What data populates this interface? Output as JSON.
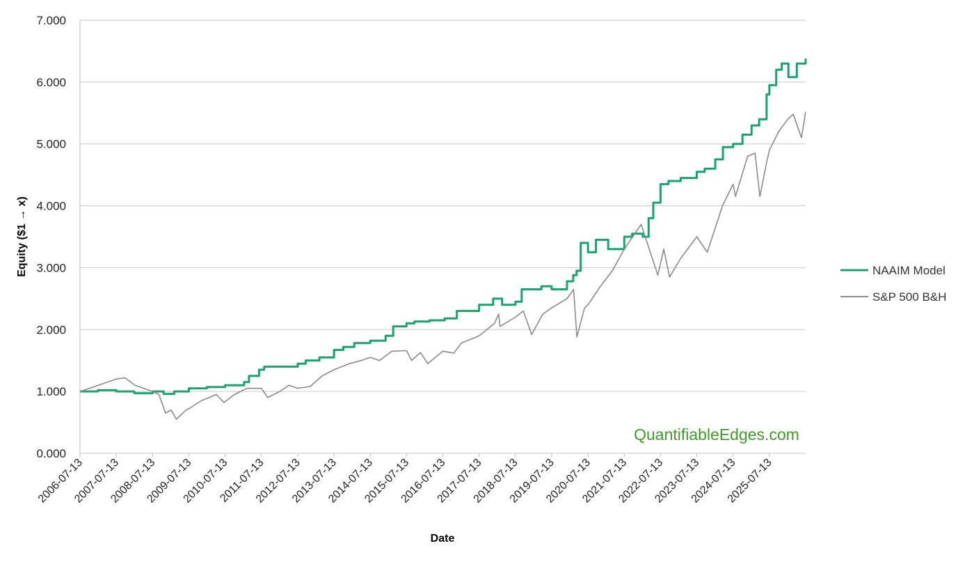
{
  "chart_data": {
    "type": "line",
    "xlabel": "Date",
    "ylabel": "Equity ($1 → x)",
    "ylim": [
      0,
      7
    ],
    "xlim": [
      "2006-07-13",
      "2026-07-13"
    ],
    "x_ticks": [
      "2006-07-13",
      "2007-07-13",
      "2008-07-13",
      "2009-07-13",
      "2010-07-13",
      "2011-07-13",
      "2012-07-13",
      "2013-07-13",
      "2014-07-13",
      "2015-07-13",
      "2016-07-13",
      "2017-07-13",
      "2018-07-13",
      "2019-07-13",
      "2020-07-13",
      "2021-07-13",
      "2022-07-13",
      "2023-07-13",
      "2024-07-13",
      "2025-07-13"
    ],
    "y_ticks": [
      "0.000",
      "1.000",
      "2.000",
      "3.000",
      "4.000",
      "5.000",
      "6.000",
      "7.000"
    ],
    "y_tick_values": [
      0,
      1,
      2,
      3,
      4,
      5,
      6,
      7
    ],
    "grid": true,
    "legend_position": "right",
    "watermark": "QuantifiableEdges.com",
    "series": [
      {
        "name": "NAAIM Model",
        "color": "#1aa170",
        "step": true,
        "points": [
          [
            "2006-07-13",
            1.0
          ],
          [
            "2007-01-10",
            1.02
          ],
          [
            "2007-07-13",
            1.0
          ],
          [
            "2008-01-10",
            0.97
          ],
          [
            "2008-07-13",
            1.0
          ],
          [
            "2008-11-01",
            0.96
          ],
          [
            "2009-02-15",
            1.0
          ],
          [
            "2009-07-13",
            1.05
          ],
          [
            "2010-01-10",
            1.07
          ],
          [
            "2010-07-13",
            1.1
          ],
          [
            "2011-01-20",
            1.15
          ],
          [
            "2011-03-10",
            1.25
          ],
          [
            "2011-06-20",
            1.35
          ],
          [
            "2011-08-10",
            1.4
          ],
          [
            "2012-07-13",
            1.45
          ],
          [
            "2012-10-01",
            1.5
          ],
          [
            "2013-02-15",
            1.55
          ],
          [
            "2013-07-13",
            1.67
          ],
          [
            "2013-10-15",
            1.72
          ],
          [
            "2014-02-01",
            1.78
          ],
          [
            "2014-07-13",
            1.82
          ],
          [
            "2014-12-15",
            1.9
          ],
          [
            "2015-03-01",
            2.05
          ],
          [
            "2015-07-13",
            2.1
          ],
          [
            "2015-10-01",
            2.13
          ],
          [
            "2016-03-01",
            2.15
          ],
          [
            "2016-08-01",
            2.18
          ],
          [
            "2016-12-01",
            2.3
          ],
          [
            "2017-07-13",
            2.4
          ],
          [
            "2017-12-01",
            2.5
          ],
          [
            "2018-03-01",
            2.4
          ],
          [
            "2018-07-13",
            2.45
          ],
          [
            "2018-09-15",
            2.65
          ],
          [
            "2019-01-15",
            2.65
          ],
          [
            "2019-04-01",
            2.7
          ],
          [
            "2019-07-13",
            2.65
          ],
          [
            "2019-12-15",
            2.78
          ],
          [
            "2020-02-15",
            2.88
          ],
          [
            "2020-03-20",
            2.95
          ],
          [
            "2020-05-01",
            3.4
          ],
          [
            "2020-07-13",
            3.25
          ],
          [
            "2020-10-01",
            3.45
          ],
          [
            "2021-02-01",
            3.3
          ],
          [
            "2021-07-13",
            3.5
          ],
          [
            "2021-10-01",
            3.55
          ],
          [
            "2022-01-15",
            3.5
          ],
          [
            "2022-03-15",
            3.8
          ],
          [
            "2022-05-01",
            4.05
          ],
          [
            "2022-07-13",
            4.35
          ],
          [
            "2022-10-01",
            4.4
          ],
          [
            "2023-02-01",
            4.45
          ],
          [
            "2023-07-13",
            4.55
          ],
          [
            "2023-10-01",
            4.6
          ],
          [
            "2024-01-15",
            4.75
          ],
          [
            "2024-04-01",
            4.95
          ],
          [
            "2024-07-13",
            5.0
          ],
          [
            "2024-10-15",
            5.15
          ],
          [
            "2025-01-15",
            5.3
          ],
          [
            "2025-04-01",
            5.4
          ],
          [
            "2025-06-15",
            5.8
          ],
          [
            "2025-07-13",
            5.95
          ],
          [
            "2025-09-20",
            6.2
          ],
          [
            "2025-11-15",
            6.3
          ],
          [
            "2026-01-20",
            6.08
          ],
          [
            "2026-04-15",
            6.3
          ],
          [
            "2026-07-13",
            6.38
          ]
        ]
      },
      {
        "name": "S&P 500 B&H",
        "color": "#8a8a8a",
        "step": false,
        "points": [
          [
            "2006-07-13",
            1.0
          ],
          [
            "2006-10-15",
            1.05
          ],
          [
            "2007-01-15",
            1.1
          ],
          [
            "2007-04-15",
            1.15
          ],
          [
            "2007-07-13",
            1.2
          ],
          [
            "2007-10-10",
            1.22
          ],
          [
            "2008-01-15",
            1.1
          ],
          [
            "2008-04-15",
            1.05
          ],
          [
            "2008-07-13",
            1.0
          ],
          [
            "2008-09-15",
            0.95
          ],
          [
            "2008-11-20",
            0.65
          ],
          [
            "2009-01-15",
            0.7
          ],
          [
            "2009-03-09",
            0.55
          ],
          [
            "2009-06-15",
            0.7
          ],
          [
            "2009-07-13",
            0.72
          ],
          [
            "2009-11-15",
            0.85
          ],
          [
            "2010-04-15",
            0.95
          ],
          [
            "2010-07-01",
            0.82
          ],
          [
            "2010-10-15",
            0.95
          ],
          [
            "2011-02-15",
            1.05
          ],
          [
            "2011-07-13",
            1.05
          ],
          [
            "2011-09-15",
            0.9
          ],
          [
            "2012-01-15",
            1.0
          ],
          [
            "2012-04-15",
            1.1
          ],
          [
            "2012-07-13",
            1.05
          ],
          [
            "2012-11-15",
            1.08
          ],
          [
            "2013-03-15",
            1.25
          ],
          [
            "2013-07-13",
            1.35
          ],
          [
            "2013-12-15",
            1.45
          ],
          [
            "2014-04-15",
            1.5
          ],
          [
            "2014-07-13",
            1.55
          ],
          [
            "2014-10-15",
            1.5
          ],
          [
            "2015-02-15",
            1.65
          ],
          [
            "2015-07-13",
            1.66
          ],
          [
            "2015-09-01",
            1.5
          ],
          [
            "2015-12-01",
            1.63
          ],
          [
            "2016-02-11",
            1.45
          ],
          [
            "2016-07-13",
            1.65
          ],
          [
            "2016-11-01",
            1.62
          ],
          [
            "2017-01-15",
            1.78
          ],
          [
            "2017-07-13",
            1.9
          ],
          [
            "2017-12-15",
            2.1
          ],
          [
            "2018-01-26",
            2.25
          ],
          [
            "2018-02-08",
            2.05
          ],
          [
            "2018-07-13",
            2.2
          ],
          [
            "2018-10-01",
            2.3
          ],
          [
            "2018-12-24",
            1.92
          ],
          [
            "2019-04-15",
            2.25
          ],
          [
            "2019-07-13",
            2.35
          ],
          [
            "2019-12-15",
            2.5
          ],
          [
            "2020-02-19",
            2.65
          ],
          [
            "2020-03-23",
            1.88
          ],
          [
            "2020-06-08",
            2.35
          ],
          [
            "2020-07-13",
            2.4
          ],
          [
            "2020-11-15",
            2.7
          ],
          [
            "2021-03-15",
            2.95
          ],
          [
            "2021-07-13",
            3.3
          ],
          [
            "2021-12-30",
            3.7
          ],
          [
            "2022-03-01",
            3.4
          ],
          [
            "2022-06-16",
            2.88
          ],
          [
            "2022-08-15",
            3.3
          ],
          [
            "2022-10-12",
            2.85
          ],
          [
            "2023-02-01",
            3.15
          ],
          [
            "2023-07-13",
            3.5
          ],
          [
            "2023-10-27",
            3.25
          ],
          [
            "2024-03-28",
            4.0
          ],
          [
            "2024-07-13",
            4.35
          ],
          [
            "2024-08-05",
            4.15
          ],
          [
            "2024-12-06",
            4.8
          ],
          [
            "2025-02-19",
            4.85
          ],
          [
            "2025-04-08",
            4.15
          ],
          [
            "2025-06-15",
            4.7
          ],
          [
            "2025-07-13",
            4.9
          ],
          [
            "2025-10-15",
            5.2
          ],
          [
            "2026-01-15",
            5.4
          ],
          [
            "2026-03-10",
            5.48
          ],
          [
            "2026-06-01",
            5.1
          ],
          [
            "2026-07-13",
            5.52
          ]
        ]
      }
    ]
  }
}
